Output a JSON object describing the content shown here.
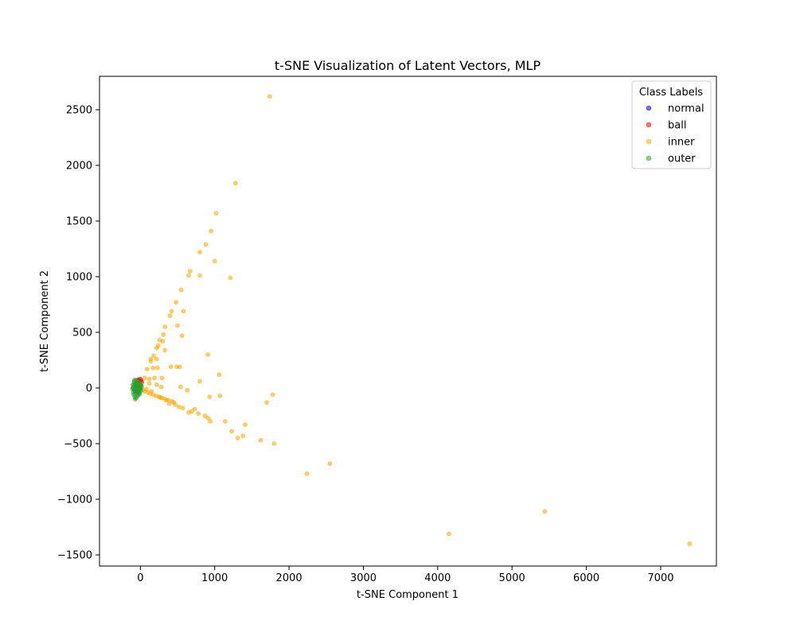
{
  "chart_data": {
    "type": "scatter",
    "title": "t-SNE Visualization of Latent Vectors, MLP",
    "xlabel": "t-SNE Component 1",
    "ylabel": "t-SNE Component 2",
    "xlim": [
      -550,
      7750
    ],
    "ylim": [
      -1600,
      2800
    ],
    "xticks": [
      0,
      1000,
      2000,
      3000,
      4000,
      5000,
      6000,
      7000
    ],
    "yticks": [
      -1500,
      -1000,
      -500,
      0,
      500,
      1000,
      1500,
      2000,
      2500
    ],
    "grid": false,
    "legend": {
      "title": "Class Labels",
      "position": "top-right"
    },
    "series": [
      {
        "name": "normal",
        "color": "#0000ff",
        "points": [
          [
            -60,
            10
          ],
          [
            -40,
            -20
          ],
          [
            -20,
            30
          ],
          [
            -50,
            50
          ],
          [
            -30,
            -40
          ],
          [
            -10,
            0
          ],
          [
            -70,
            -30
          ],
          [
            -45,
            15
          ]
        ]
      },
      {
        "name": "ball",
        "color": "#ff0000",
        "points": [
          [
            -40,
            60
          ],
          [
            -20,
            70
          ],
          [
            0,
            80
          ],
          [
            -10,
            55
          ],
          [
            -50,
            40
          ],
          [
            10,
            65
          ],
          [
            -30,
            75
          ],
          [
            20,
            50
          ]
        ]
      },
      {
        "name": "inner",
        "color": "#ffa500",
        "points": [
          [
            1740,
            2620
          ],
          [
            1280,
            1840
          ],
          [
            1020,
            1570
          ],
          [
            950,
            1410
          ],
          [
            880,
            1290
          ],
          [
            800,
            1220
          ],
          [
            1000,
            1140
          ],
          [
            650,
            1010
          ],
          [
            670,
            1050
          ],
          [
            800,
            1010
          ],
          [
            1210,
            990
          ],
          [
            550,
            880
          ],
          [
            480,
            770
          ],
          [
            420,
            690
          ],
          [
            400,
            650
          ],
          [
            330,
            550
          ],
          [
            500,
            560
          ],
          [
            580,
            690
          ],
          [
            310,
            480
          ],
          [
            560,
            470
          ],
          [
            260,
            430
          ],
          [
            300,
            420
          ],
          [
            240,
            380
          ],
          [
            220,
            360
          ],
          [
            330,
            340
          ],
          [
            910,
            300
          ],
          [
            180,
            290
          ],
          [
            140,
            240
          ],
          [
            140,
            260
          ],
          [
            220,
            260
          ],
          [
            170,
            180
          ],
          [
            230,
            180
          ],
          [
            90,
            170
          ],
          [
            530,
            190
          ],
          [
            490,
            190
          ],
          [
            410,
            190
          ],
          [
            1060,
            120
          ],
          [
            290,
            90
          ],
          [
            190,
            90
          ],
          [
            120,
            80
          ],
          [
            60,
            90
          ],
          [
            800,
            60
          ],
          [
            120,
            40
          ],
          [
            220,
            30
          ],
          [
            280,
            10
          ],
          [
            20,
            30
          ],
          [
            540,
            10
          ],
          [
            630,
            -20
          ],
          [
            930,
            -80
          ],
          [
            1070,
            -70
          ],
          [
            1780,
            -60
          ],
          [
            1700,
            -130
          ],
          [
            1410,
            -330
          ],
          [
            1380,
            -430
          ],
          [
            1310,
            -450
          ],
          [
            1620,
            -470
          ],
          [
            1800,
            -500
          ],
          [
            1230,
            -390
          ],
          [
            1140,
            -300
          ],
          [
            940,
            -300
          ],
          [
            910,
            -270
          ],
          [
            870,
            -250
          ],
          [
            780,
            -230
          ],
          [
            730,
            -190
          ],
          [
            690,
            -210
          ],
          [
            650,
            -220
          ],
          [
            570,
            -180
          ],
          [
            520,
            -170
          ],
          [
            470,
            -150
          ],
          [
            430,
            -120
          ],
          [
            380,
            -110
          ],
          [
            330,
            -100
          ],
          [
            290,
            -90
          ],
          [
            250,
            -80
          ],
          [
            210,
            -70
          ],
          [
            170,
            -60
          ],
          [
            130,
            -50
          ],
          [
            100,
            -40
          ],
          [
            60,
            -30
          ],
          [
            30,
            -20
          ],
          [
            390,
            -140
          ],
          [
            450,
            -130
          ],
          [
            350,
            -110
          ],
          [
            270,
            -85
          ],
          [
            150,
            -30
          ],
          [
            80,
            -10
          ],
          [
            2240,
            -770
          ],
          [
            2550,
            -680
          ],
          [
            5440,
            -1110
          ],
          [
            4150,
            -1310
          ],
          [
            7390,
            -1400
          ]
        ]
      },
      {
        "name": "outer",
        "color": "#2ca02c",
        "points": [
          [
            -100,
            0
          ],
          [
            -90,
            20
          ],
          [
            -80,
            -20
          ],
          [
            -70,
            40
          ],
          [
            -60,
            -50
          ],
          [
            -50,
            60
          ],
          [
            -40,
            -60
          ],
          [
            -30,
            30
          ],
          [
            -20,
            -30
          ],
          [
            -10,
            10
          ],
          [
            0,
            -10
          ],
          [
            10,
            20
          ],
          [
            -95,
            -40
          ],
          [
            -85,
            50
          ],
          [
            -75,
            -80
          ],
          [
            -65,
            70
          ],
          [
            -55,
            -90
          ],
          [
            -45,
            40
          ],
          [
            -35,
            -70
          ],
          [
            -25,
            60
          ],
          [
            -15,
            -45
          ],
          [
            -5,
            25
          ],
          [
            5,
            -25
          ],
          [
            15,
            5
          ],
          [
            -100,
            30
          ],
          [
            -90,
            -60
          ],
          [
            -80,
            70
          ],
          [
            -70,
            -100
          ],
          [
            -60,
            20
          ],
          [
            -50,
            -20
          ],
          [
            -40,
            10
          ],
          [
            -30,
            -10
          ],
          [
            -20,
            45
          ],
          [
            -10,
            -55
          ],
          [
            0,
            35
          ],
          [
            -105,
            -10
          ],
          [
            -88,
            5
          ],
          [
            -72,
            -5
          ],
          [
            -58,
            0
          ],
          [
            -42,
            -15
          ],
          [
            -28,
            15
          ],
          [
            -12,
            -5
          ]
        ]
      }
    ]
  }
}
